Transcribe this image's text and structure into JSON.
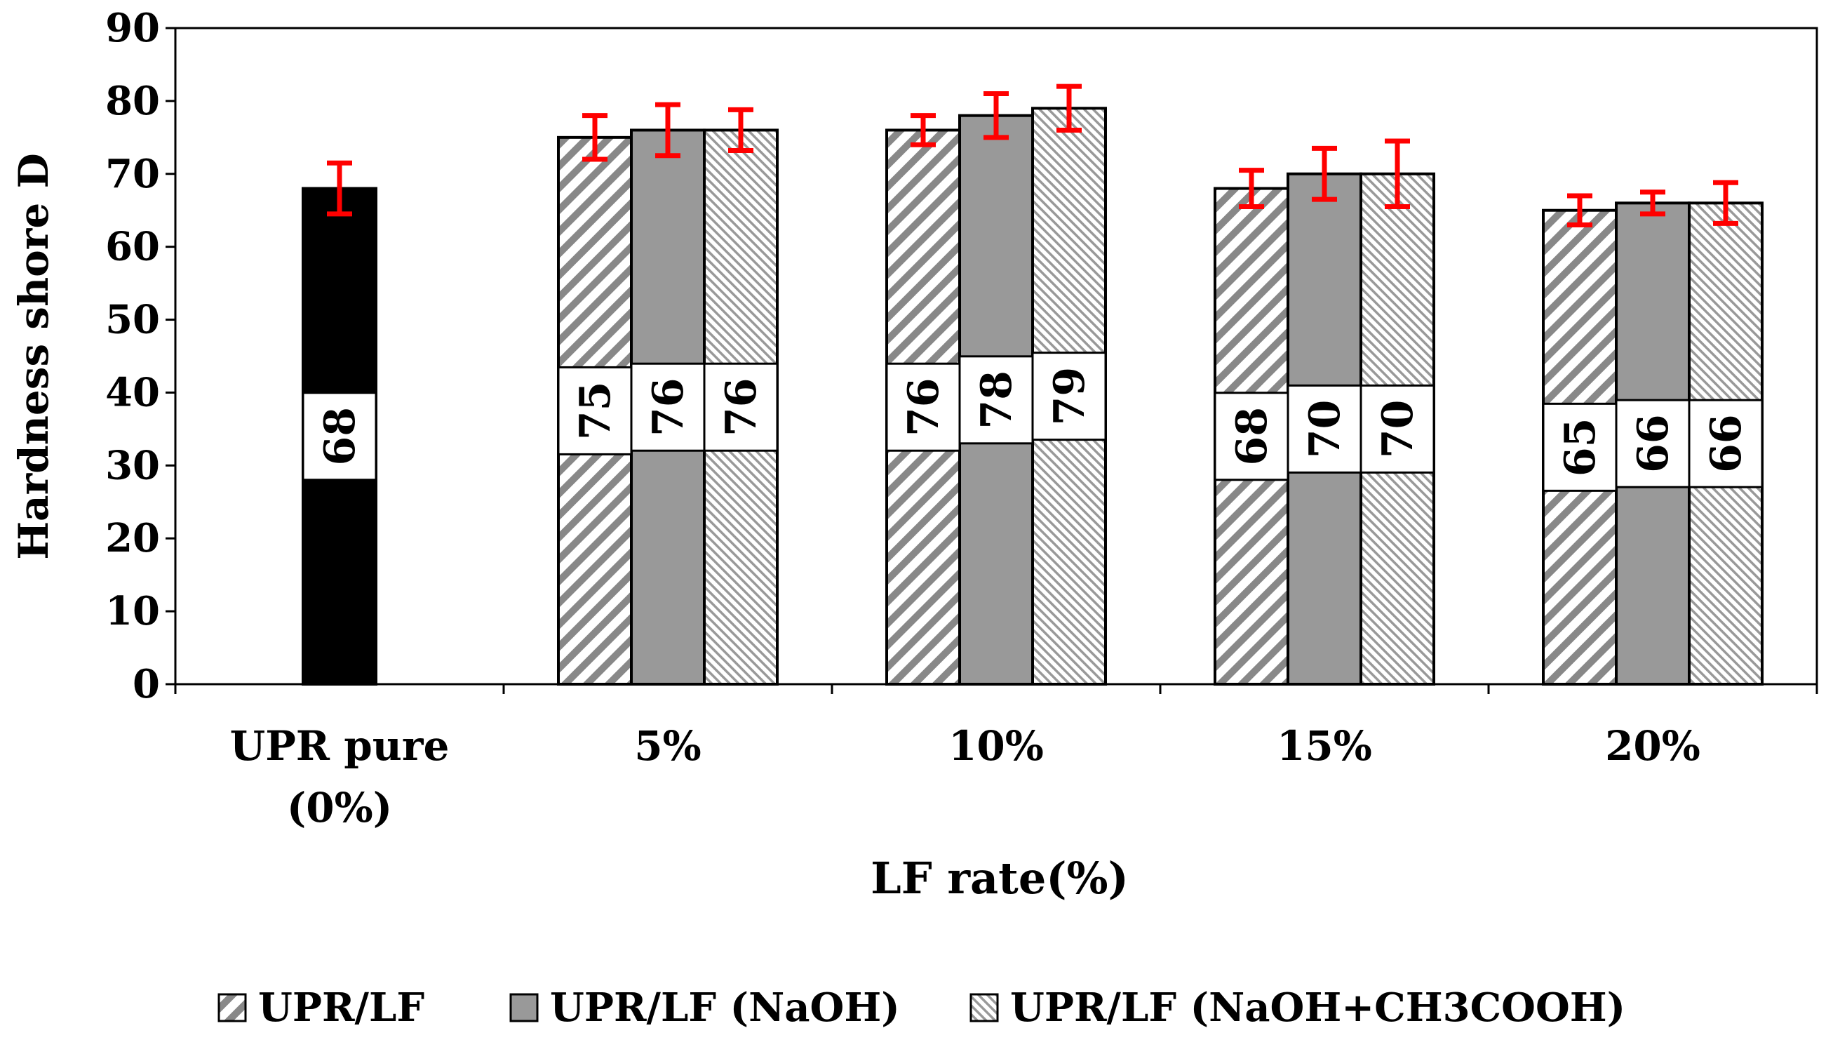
{
  "chart_data": {
    "type": "bar",
    "title": "",
    "xlabel": "LF rate(%)",
    "ylabel": "Hardness shore D",
    "ylim": [
      0,
      90
    ],
    "yticks": [
      0,
      10,
      20,
      30,
      40,
      50,
      60,
      70,
      80,
      90
    ],
    "grid": false,
    "legend_position": "bottom",
    "categories": [
      {
        "label_lines": [
          "UPR pure",
          "(0%)"
        ]
      },
      {
        "label_lines": [
          "5%"
        ]
      },
      {
        "label_lines": [
          "10%"
        ]
      },
      {
        "label_lines": [
          "15%"
        ]
      },
      {
        "label_lines": [
          "20%"
        ]
      }
    ],
    "pure": {
      "name": "",
      "category_index": 0,
      "value": 68,
      "error": 3.5,
      "color": "#000000"
    },
    "series": [
      {
        "name": "UPR/LF",
        "pattern": "wide-diagonal",
        "color": "#888888",
        "values": [
          null,
          75,
          76,
          68,
          65
        ],
        "errors": [
          null,
          3.0,
          2.0,
          2.5,
          2.0
        ]
      },
      {
        "name": "UPR/LF (NaOH)",
        "pattern": "solid",
        "color": "#999999",
        "values": [
          null,
          76,
          78,
          70,
          66
        ],
        "errors": [
          null,
          3.5,
          3.0,
          3.5,
          1.5
        ]
      },
      {
        "name": "UPR/LF (NaOH+CH3COOH)",
        "pattern": "fine-diagonal",
        "color": "#999999",
        "values": [
          null,
          76,
          79,
          70,
          66
        ],
        "errors": [
          null,
          2.8,
          3.0,
          4.5,
          2.8
        ]
      }
    ],
    "error_bar_color": "#ff0000"
  }
}
